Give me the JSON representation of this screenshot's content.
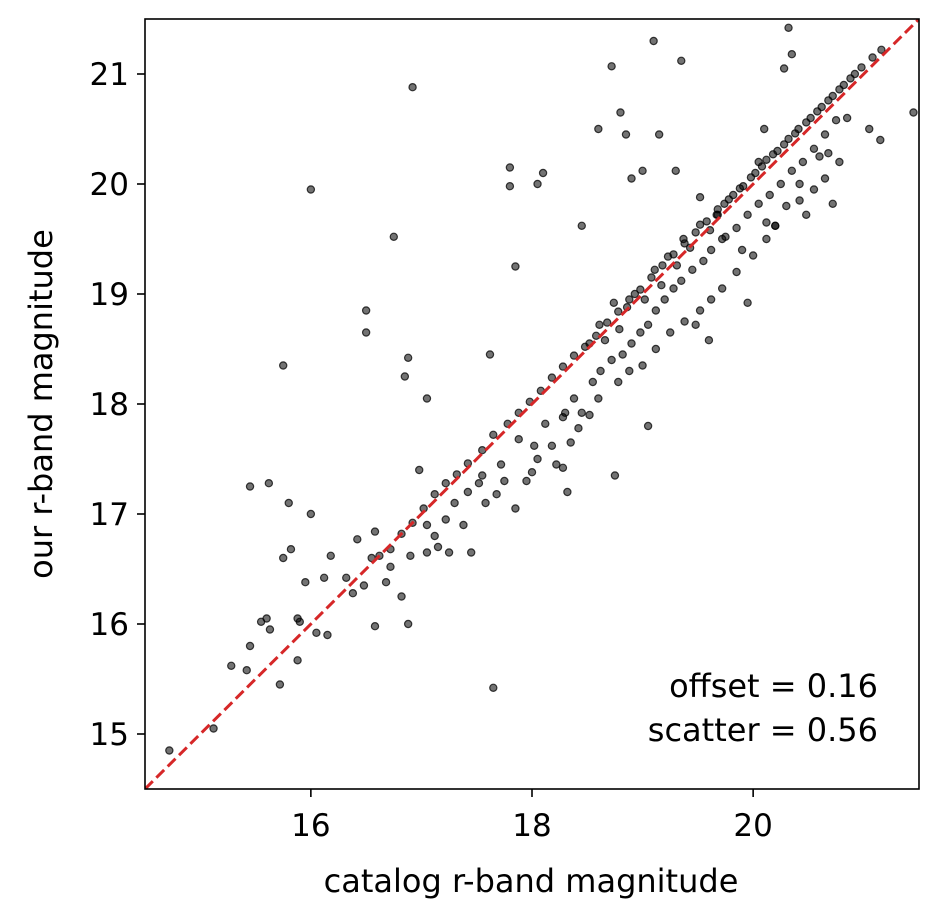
{
  "chart_data": {
    "type": "scatter",
    "title": "",
    "xlabel": "catalog r-band magnitude",
    "ylabel": "our r-band magnitude",
    "xlim": [
      14.5,
      21.5
    ],
    "ylim": [
      14.5,
      21.5
    ],
    "xticks": [
      16,
      18,
      20
    ],
    "yticks": [
      15,
      16,
      17,
      18,
      19,
      20,
      21
    ],
    "grid": false,
    "legend": "none",
    "marker_color": "#000000",
    "reference_line": {
      "type": "y=x",
      "style": "dashed",
      "color": "#d62728"
    },
    "annotations": [
      "offset = 0.16",
      "scatter = 0.56"
    ],
    "annotation_position": "bottom-right",
    "notes": "",
    "series": [
      {
        "points": [
          [
            14.72,
            14.85
          ],
          [
            15.28,
            15.62
          ],
          [
            15.42,
            15.58
          ],
          [
            15.45,
            15.8
          ],
          [
            15.63,
            15.95
          ],
          [
            15.72,
            15.45
          ],
          [
            15.88,
            15.67
          ],
          [
            15.95,
            16.38
          ],
          [
            16.05,
            15.92
          ],
          [
            16.12,
            16.42
          ],
          [
            16.18,
            16.62
          ],
          [
            16.32,
            16.42
          ],
          [
            16.38,
            16.28
          ],
          [
            16.42,
            16.77
          ],
          [
            16.58,
            16.84
          ],
          [
            16.62,
            16.62
          ],
          [
            16.68,
            16.38
          ],
          [
            16.72,
            16.68
          ],
          [
            16.82,
            16.82
          ],
          [
            16.92,
            16.92
          ],
          [
            17.02,
            17.05
          ],
          [
            17.12,
            17.18
          ],
          [
            17.22,
            17.28
          ],
          [
            17.32,
            17.36
          ],
          [
            17.42,
            17.46
          ],
          [
            17.55,
            17.58
          ],
          [
            17.65,
            17.72
          ],
          [
            17.78,
            17.82
          ],
          [
            17.88,
            17.92
          ],
          [
            17.98,
            18.02
          ],
          [
            18.08,
            18.12
          ],
          [
            18.18,
            18.24
          ],
          [
            18.28,
            18.34
          ],
          [
            18.38,
            18.44
          ],
          [
            18.48,
            18.52
          ],
          [
            18.58,
            18.62
          ],
          [
            18.68,
            18.74
          ],
          [
            18.78,
            18.84
          ],
          [
            18.88,
            18.95
          ],
          [
            18.98,
            19.04
          ],
          [
            19.08,
            19.15
          ],
          [
            19.18,
            19.26
          ],
          [
            19.28,
            19.36
          ],
          [
            19.38,
            19.46
          ],
          [
            19.48,
            19.56
          ],
          [
            19.58,
            19.66
          ],
          [
            19.68,
            19.77
          ],
          [
            19.78,
            19.86
          ],
          [
            19.88,
            19.96
          ],
          [
            19.98,
            20.06
          ],
          [
            20.08,
            20.16
          ],
          [
            20.18,
            20.27
          ],
          [
            20.28,
            20.36
          ],
          [
            20.38,
            20.46
          ],
          [
            20.48,
            20.56
          ],
          [
            20.58,
            20.66
          ],
          [
            20.68,
            20.76
          ],
          [
            20.78,
            20.86
          ],
          [
            20.88,
            20.96
          ],
          [
            20.98,
            21.06
          ],
          [
            21.08,
            21.15
          ],
          [
            21.16,
            21.22
          ],
          [
            18.52,
            18.55
          ],
          [
            18.61,
            18.72
          ],
          [
            18.66,
            18.58
          ],
          [
            18.74,
            18.92
          ],
          [
            18.79,
            18.68
          ],
          [
            18.86,
            18.88
          ],
          [
            18.93,
            19.0
          ],
          [
            19.02,
            18.95
          ],
          [
            19.11,
            19.22
          ],
          [
            19.17,
            19.08
          ],
          [
            19.23,
            19.34
          ],
          [
            19.31,
            19.26
          ],
          [
            19.37,
            19.5
          ],
          [
            19.43,
            19.42
          ],
          [
            19.52,
            19.63
          ],
          [
            19.61,
            19.58
          ],
          [
            19.67,
            19.72
          ],
          [
            19.74,
            19.82
          ],
          [
            19.82,
            19.9
          ],
          [
            19.91,
            19.98
          ],
          [
            20.02,
            20.1
          ],
          [
            20.12,
            20.22
          ],
          [
            20.22,
            20.3
          ],
          [
            20.32,
            20.41
          ],
          [
            20.41,
            20.5
          ],
          [
            20.52,
            20.6
          ],
          [
            20.62,
            20.7
          ],
          [
            20.72,
            20.8
          ],
          [
            20.82,
            20.9
          ],
          [
            20.92,
            21.0
          ],
          [
            17.12,
            16.8
          ],
          [
            17.05,
            16.65
          ],
          [
            17.22,
            16.95
          ],
          [
            17.3,
            17.1
          ],
          [
            17.42,
            17.2
          ],
          [
            17.55,
            17.35
          ],
          [
            17.72,
            17.45
          ],
          [
            17.88,
            17.68
          ],
          [
            18.02,
            17.62
          ],
          [
            18.12,
            17.82
          ],
          [
            18.28,
            17.88
          ],
          [
            18.38,
            18.05
          ],
          [
            18.45,
            17.92
          ],
          [
            18.55,
            18.2
          ],
          [
            18.62,
            18.3
          ],
          [
            18.72,
            18.4
          ],
          [
            18.82,
            18.45
          ],
          [
            18.9,
            18.55
          ],
          [
            18.98,
            18.65
          ],
          [
            19.05,
            18.72
          ],
          [
            19.12,
            18.85
          ],
          [
            19.2,
            18.95
          ],
          [
            19.28,
            19.05
          ],
          [
            19.35,
            19.12
          ],
          [
            19.45,
            19.22
          ],
          [
            19.55,
            19.3
          ],
          [
            19.62,
            19.4
          ],
          [
            19.72,
            19.5
          ],
          [
            19.85,
            19.6
          ],
          [
            19.95,
            19.72
          ],
          [
            20.05,
            19.82
          ],
          [
            20.15,
            19.9
          ],
          [
            20.25,
            20.0
          ],
          [
            20.35,
            20.12
          ],
          [
            20.45,
            20.2
          ],
          [
            20.55,
            20.32
          ],
          [
            20.65,
            20.45
          ],
          [
            20.75,
            20.58
          ],
          [
            16.55,
            16.6
          ],
          [
            16.48,
            16.35
          ],
          [
            16.72,
            16.52
          ],
          [
            16.82,
            16.25
          ],
          [
            16.9,
            16.62
          ],
          [
            17.05,
            16.9
          ],
          [
            17.15,
            16.7
          ],
          [
            17.25,
            16.65
          ],
          [
            17.45,
            16.65
          ],
          [
            17.38,
            16.9
          ],
          [
            17.58,
            17.1
          ],
          [
            17.68,
            17.18
          ],
          [
            17.85,
            17.05
          ],
          [
            17.95,
            17.3
          ],
          [
            18.05,
            17.5
          ],
          [
            18.18,
            17.62
          ],
          [
            18.28,
            17.42
          ],
          [
            18.32,
            17.2
          ],
          [
            18.35,
            17.65
          ],
          [
            18.42,
            17.78
          ],
          [
            18.52,
            17.9
          ],
          [
            18.6,
            18.05
          ],
          [
            18.78,
            18.2
          ],
          [
            18.88,
            18.3
          ],
          [
            19.0,
            18.35
          ],
          [
            19.12,
            18.5
          ],
          [
            19.25,
            18.65
          ],
          [
            19.38,
            18.75
          ],
          [
            19.52,
            18.85
          ],
          [
            19.62,
            18.95
          ],
          [
            19.72,
            19.05
          ],
          [
            19.85,
            19.2
          ],
          [
            20.0,
            19.35
          ],
          [
            20.12,
            19.5
          ],
          [
            20.2,
            19.62
          ],
          [
            20.3,
            19.8
          ],
          [
            20.42,
            19.85
          ],
          [
            20.55,
            19.95
          ],
          [
            20.65,
            20.05
          ],
          [
            20.78,
            20.2
          ],
          [
            15.12,
            15.05
          ],
          [
            16.0,
            19.95
          ],
          [
            16.75,
            19.52
          ],
          [
            16.92,
            20.88
          ],
          [
            15.45,
            17.25
          ],
          [
            15.62,
            17.28
          ],
          [
            15.8,
            17.1
          ],
          [
            15.75,
            16.6
          ],
          [
            15.82,
            16.68
          ],
          [
            16.0,
            17.0
          ],
          [
            16.15,
            15.9
          ],
          [
            15.75,
            18.35
          ],
          [
            16.5,
            18.85
          ],
          [
            16.5,
            18.65
          ],
          [
            16.85,
            18.25
          ],
          [
            16.88,
            18.42
          ],
          [
            17.05,
            18.05
          ],
          [
            16.98,
            17.4
          ],
          [
            17.62,
            18.45
          ],
          [
            17.65,
            15.42
          ],
          [
            17.8,
            20.15
          ],
          [
            17.8,
            19.98
          ],
          [
            17.85,
            19.25
          ],
          [
            18.05,
            20.0
          ],
          [
            18.1,
            20.1
          ],
          [
            18.45,
            19.62
          ],
          [
            18.6,
            20.5
          ],
          [
            18.8,
            20.65
          ],
          [
            18.85,
            20.45
          ],
          [
            18.9,
            20.05
          ],
          [
            19.0,
            20.12
          ],
          [
            19.1,
            21.3
          ],
          [
            19.15,
            20.45
          ],
          [
            19.3,
            20.12
          ],
          [
            19.35,
            21.12
          ],
          [
            18.72,
            21.07
          ],
          [
            19.52,
            19.88
          ],
          [
            19.48,
            18.72
          ],
          [
            19.6,
            18.58
          ],
          [
            19.68,
            19.72
          ],
          [
            19.75,
            19.52
          ],
          [
            19.9,
            19.4
          ],
          [
            20.05,
            20.2
          ],
          [
            20.1,
            20.5
          ],
          [
            20.2,
            19.62
          ],
          [
            20.28,
            21.05
          ],
          [
            20.32,
            21.42
          ],
          [
            20.35,
            21.18
          ],
          [
            20.42,
            20.0
          ],
          [
            20.48,
            19.72
          ],
          [
            20.68,
            20.28
          ],
          [
            20.72,
            19.82
          ],
          [
            20.85,
            20.6
          ],
          [
            21.05,
            20.5
          ],
          [
            21.15,
            20.4
          ],
          [
            21.45,
            20.65
          ],
          [
            19.95,
            18.92
          ],
          [
            20.6,
            20.25
          ],
          [
            20.12,
            19.65
          ],
          [
            19.05,
            17.8
          ],
          [
            18.75,
            17.35
          ],
          [
            18.3,
            17.92
          ],
          [
            18.22,
            17.45
          ],
          [
            18.0,
            17.38
          ],
          [
            17.75,
            17.3
          ],
          [
            17.52,
            17.28
          ],
          [
            15.88,
            16.05
          ],
          [
            15.9,
            16.02
          ],
          [
            16.58,
            15.98
          ],
          [
            16.88,
            16.0
          ],
          [
            15.6,
            16.05
          ],
          [
            15.55,
            16.02
          ]
        ]
      }
    ]
  }
}
